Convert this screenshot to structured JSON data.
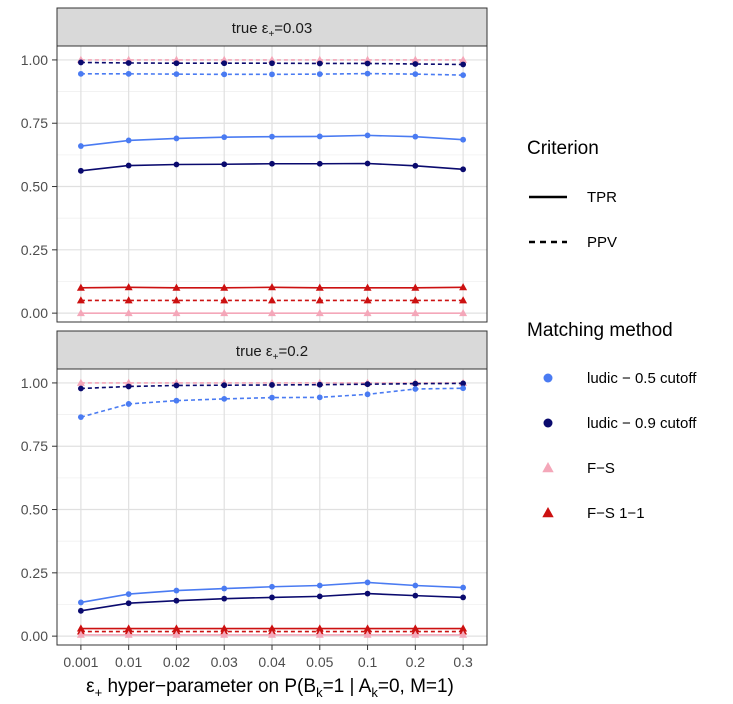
{
  "chart_data": {
    "type": "line",
    "x_label_prefix": "ε",
    "x_label_sub": "+",
    "x_label_text": " hyper−parameter on P(B",
    "x_label_sub2": "k",
    "x_label_text2": "=1 | A",
    "x_label_sub3": "k",
    "x_label_text3": "=0, M=1)",
    "categories": [
      "0.001",
      "0.01",
      "0.02",
      "0.03",
      "0.04",
      "0.05",
      "0.1",
      "0.2",
      "0.3"
    ],
    "y_ticks": [
      "0.00",
      "0.25",
      "0.50",
      "0.75",
      "1.00"
    ],
    "ylim": [
      -0.035,
      1.055
    ],
    "grid": true,
    "legend_position": "right",
    "colors": {
      "ludic05": "#4A7BF2",
      "ludic09": "#0A0A6E",
      "fs": "#F4A7B9",
      "fs11": "#CC1111",
      "strip_bg": "#D9D9D9",
      "panel_bg": "#FFFFFF",
      "grid_major": "#E0E0E0",
      "grid_minor": "#F0F0F0"
    },
    "legend": {
      "criterion_title": "Criterion",
      "criterion_items": [
        {
          "label": "TPR",
          "dash": "solid"
        },
        {
          "label": "PPV",
          "dash": "dashed"
        }
      ],
      "method_title": "Matching method",
      "method_items": [
        {
          "label": "ludic − 0.5 cutoff",
          "color_key": "ludic05",
          "shape": "circle"
        },
        {
          "label": "ludic − 0.9 cutoff",
          "color_key": "ludic09",
          "shape": "circle"
        },
        {
          "label": "F−S",
          "color_key": "fs",
          "shape": "triangle"
        },
        {
          "label": "F−S 1−1",
          "color_key": "fs11",
          "shape": "triangle"
        }
      ]
    },
    "panels": [
      {
        "strip_prefix": "true ε",
        "strip_sub": "+",
        "strip_suffix": "=0.03",
        "series": [
          {
            "method": "fs",
            "criterion": "PPV",
            "values": [
              1.0,
              1.0,
              1.0,
              1.0,
              1.0,
              1.0,
              1.0,
              1.0,
              1.0
            ]
          },
          {
            "method": "ludic09",
            "criterion": "PPV",
            "values": [
              0.99,
              0.988,
              0.987,
              0.987,
              0.987,
              0.986,
              0.986,
              0.984,
              0.982
            ]
          },
          {
            "method": "ludic05",
            "criterion": "PPV",
            "values": [
              0.945,
              0.945,
              0.944,
              0.943,
              0.943,
              0.944,
              0.946,
              0.944,
              0.94
            ]
          },
          {
            "method": "ludic05",
            "criterion": "TPR",
            "values": [
              0.66,
              0.682,
              0.69,
              0.695,
              0.697,
              0.698,
              0.702,
              0.697,
              0.685
            ]
          },
          {
            "method": "ludic09",
            "criterion": "TPR",
            "values": [
              0.562,
              0.583,
              0.587,
              0.588,
              0.59,
              0.59,
              0.591,
              0.582,
              0.568
            ]
          },
          {
            "method": "fs11",
            "criterion": "TPR",
            "values": [
              0.1,
              0.102,
              0.1,
              0.1,
              0.102,
              0.1,
              0.1,
              0.1,
              0.102
            ]
          },
          {
            "method": "fs11",
            "criterion": "PPV",
            "values": [
              0.05,
              0.05,
              0.05,
              0.05,
              0.05,
              0.05,
              0.05,
              0.05,
              0.05
            ]
          },
          {
            "method": "fs",
            "criterion": "TPR",
            "values": [
              0.0,
              0.0,
              0.0,
              0.0,
              0.0,
              0.0,
              0.0,
              0.0,
              0.0
            ]
          }
        ]
      },
      {
        "strip_prefix": "true ε",
        "strip_sub": "+",
        "strip_suffix": "=0.2",
        "series": [
          {
            "method": "fs",
            "criterion": "PPV",
            "values": [
              1.0,
              1.0,
              1.0,
              1.0,
              1.0,
              1.0,
              1.0,
              1.0,
              1.0
            ]
          },
          {
            "method": "ludic09",
            "criterion": "PPV",
            "values": [
              0.978,
              0.986,
              0.99,
              0.991,
              0.992,
              0.993,
              0.995,
              0.997,
              0.998
            ]
          },
          {
            "method": "ludic05",
            "criterion": "PPV",
            "values": [
              0.865,
              0.917,
              0.93,
              0.937,
              0.942,
              0.943,
              0.955,
              0.976,
              0.979
            ]
          },
          {
            "method": "ludic05",
            "criterion": "TPR",
            "values": [
              0.133,
              0.166,
              0.18,
              0.188,
              0.195,
              0.2,
              0.212,
              0.2,
              0.192
            ]
          },
          {
            "method": "ludic09",
            "criterion": "TPR",
            "values": [
              0.1,
              0.13,
              0.14,
              0.148,
              0.153,
              0.157,
              0.168,
              0.16,
              0.153
            ]
          },
          {
            "method": "fs11",
            "criterion": "TPR",
            "values": [
              0.03,
              0.03,
              0.03,
              0.03,
              0.03,
              0.03,
              0.03,
              0.03,
              0.03
            ]
          },
          {
            "method": "fs11",
            "criterion": "PPV",
            "values": [
              0.018,
              0.018,
              0.018,
              0.018,
              0.018,
              0.018,
              0.018,
              0.018,
              0.018
            ]
          },
          {
            "method": "fs",
            "criterion": "TPR",
            "values": [
              0.005,
              0.005,
              0.005,
              0.005,
              0.005,
              0.005,
              0.005,
              0.005,
              0.005
            ]
          }
        ]
      }
    ]
  }
}
